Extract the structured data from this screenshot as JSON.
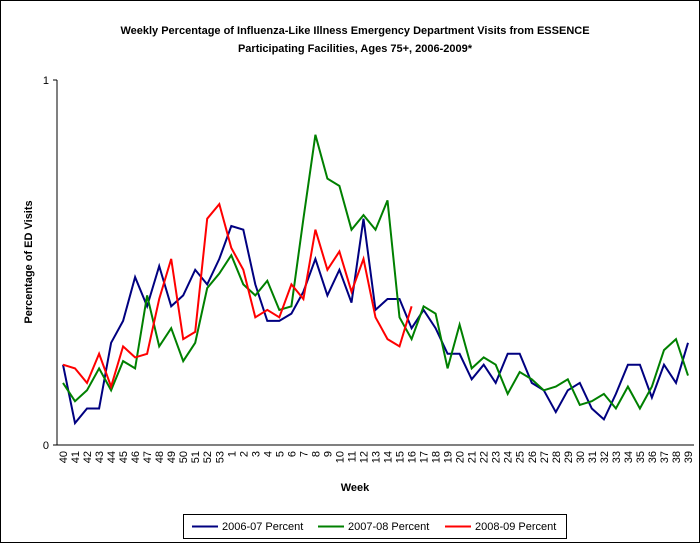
{
  "chart_data": {
    "type": "line",
    "title": [
      "Weekly Percentage of Influenza-Like Illness Emergency Department Visits from ESSENCE",
      "Participating Facilities, Ages 75+, 2006-2009*"
    ],
    "x_label": "Week",
    "y_label": "Percentage of ED Visits",
    "categories": [
      "40",
      "41",
      "42",
      "43",
      "44",
      "45",
      "46",
      "47",
      "48",
      "49",
      "50",
      "51",
      "52",
      "53",
      "1",
      "2",
      "3",
      "4",
      "5",
      "6",
      "7",
      "8",
      "9",
      "10",
      "11",
      "12",
      "13",
      "14",
      "15",
      "16",
      "17",
      "18",
      "19",
      "20",
      "21",
      "22",
      "23",
      "24",
      "25",
      "26",
      "27",
      "28",
      "29",
      "30",
      "31",
      "32",
      "33",
      "34",
      "35",
      "36",
      "37",
      "38",
      "39"
    ],
    "series": [
      {
        "name": "2006-07 Percent",
        "color": "#000080",
        "values": [
          0.22,
          0.06,
          0.1,
          0.1,
          0.28,
          0.34,
          0.46,
          0.38,
          0.49,
          0.38,
          0.41,
          0.48,
          0.44,
          0.51,
          0.6,
          0.59,
          0.44,
          0.34,
          0.34,
          0.36,
          0.42,
          0.51,
          0.41,
          0.48,
          0.39,
          0.62,
          0.37,
          0.4,
          0.4,
          0.32,
          0.37,
          0.32,
          0.25,
          0.25,
          0.18,
          0.22,
          0.17,
          0.25,
          0.25,
          0.17,
          0.15,
          0.09,
          0.15,
          0.17,
          0.1,
          0.07,
          0.14,
          0.22,
          0.22,
          0.13,
          0.22,
          0.17,
          0.28
        ]
      },
      {
        "name": "2007-08 Percent",
        "color": "#008000",
        "values": [
          0.17,
          0.12,
          0.15,
          0.21,
          0.15,
          0.23,
          0.21,
          0.41,
          0.27,
          0.32,
          0.23,
          0.28,
          0.43,
          0.47,
          0.52,
          0.44,
          0.41,
          0.45,
          0.37,
          0.38,
          0.62,
          0.85,
          0.73,
          0.71,
          0.59,
          0.63,
          0.59,
          0.67,
          0.35,
          0.29,
          0.38,
          0.36,
          0.21,
          0.33,
          0.21,
          0.24,
          0.22,
          0.14,
          0.2,
          0.18,
          0.15,
          0.16,
          0.18,
          0.11,
          0.12,
          0.14,
          0.1,
          0.16,
          0.1,
          0.16,
          0.26,
          0.29,
          0.19
        ]
      },
      {
        "name": "2008-09 Percent",
        "color": "#ff0000",
        "values": [
          0.22,
          0.21,
          0.17,
          0.25,
          0.16,
          0.27,
          0.24,
          0.25,
          0.4,
          0.51,
          0.29,
          0.31,
          0.62,
          0.66,
          0.54,
          0.48,
          0.35,
          0.37,
          0.35,
          0.44,
          0.4,
          0.59,
          0.48,
          0.53,
          0.42,
          0.51,
          0.35,
          0.29,
          0.27,
          0.38,
          null,
          null,
          null,
          null,
          null,
          null,
          null,
          null,
          null,
          null,
          null,
          null,
          null,
          null,
          null,
          null,
          null,
          null,
          null,
          null,
          null,
          null,
          null
        ]
      }
    ],
    "ylim": [
      0,
      1
    ],
    "yticks": [
      0,
      1
    ],
    "grid": false
  }
}
